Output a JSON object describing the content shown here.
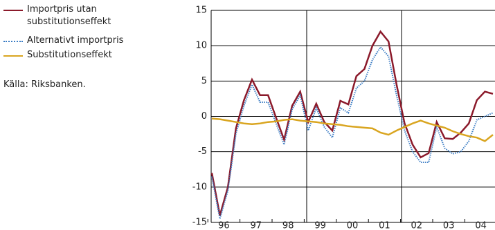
{
  "chart_data": {
    "type": "line",
    "source": "Källa: Riksbanken.",
    "categories": [
      null,
      "96",
      null,
      null,
      null,
      "97",
      null,
      null,
      null,
      "98",
      null,
      null,
      null,
      "99",
      null,
      null,
      null,
      "00",
      null,
      null,
      null,
      "01",
      null,
      null,
      null,
      "02",
      null,
      null,
      null,
      "03",
      null,
      null,
      null,
      "04",
      null,
      null
    ],
    "series": [
      {
        "name": "Importpris utan substitutionseffekt",
        "color": "#8b1a2b",
        "style": "solid",
        "values": [
          -8,
          -14,
          -10,
          -1.7,
          2.3,
          5.2,
          3,
          3,
          -0.2,
          -3.3,
          1.5,
          3.5,
          -0.8,
          1.8,
          -0.8,
          -2,
          2.2,
          1.7,
          5.7,
          6.7,
          10,
          12,
          10.6,
          4.5,
          -1,
          -4,
          -5.8,
          -5.2,
          -0.8,
          -3.1,
          -3.2,
          -2.3,
          -1,
          2.3,
          3.5,
          3.2
        ]
      },
      {
        "name": "Alternativt importpris",
        "color": "#3a7cc4",
        "style": "dotted",
        "values": [
          -8.5,
          -14.5,
          -10.5,
          -2.5,
          1.5,
          4.5,
          2,
          2,
          -1,
          -4,
          1,
          3,
          -2,
          1.2,
          -1.5,
          -3,
          1.2,
          0.5,
          4,
          5,
          8,
          9.8,
          8.5,
          3,
          -2,
          -5,
          -6.5,
          -6.5,
          -1.5,
          -4.5,
          -5.3,
          -5,
          -3.5,
          -0.5,
          0,
          0.5
        ]
      },
      {
        "name": "Substitutionseffekt",
        "color": "#d9a520",
        "style": "solid",
        "values": [
          -0.3,
          -0.4,
          -0.6,
          -0.8,
          -1,
          -1.1,
          -1,
          -0.8,
          -0.7,
          -0.5,
          -0.4,
          -0.6,
          -0.7,
          -0.8,
          -1,
          -1.1,
          -1.2,
          -1.4,
          -1.5,
          -1.6,
          -1.7,
          -2.3,
          -2.6,
          -2,
          -1.5,
          -1,
          -0.6,
          -1,
          -1.3,
          -1.6,
          -2.1,
          -2.5,
          -2.8,
          -3,
          -3.5,
          -2.6
        ]
      }
    ],
    "ylim": [
      -15,
      15
    ],
    "yticks": [
      -15,
      -10,
      -5,
      0,
      5,
      10,
      15
    ],
    "grid": true
  }
}
